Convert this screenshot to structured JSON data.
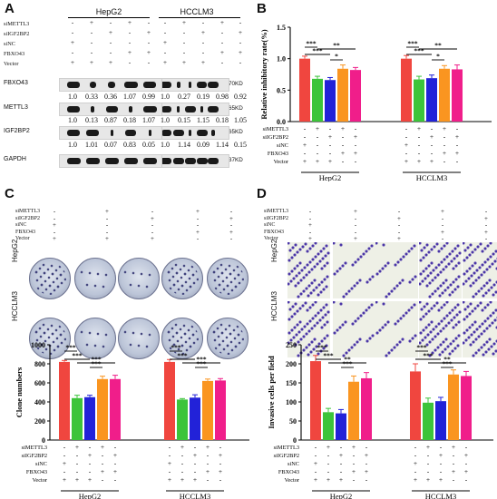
{
  "panels": {
    "A": "A",
    "B": "B",
    "C": "C",
    "D": "D"
  },
  "conditions": {
    "siMETTL3": "siMETTL3",
    "siIGF2BP2": "siIGF2BP2",
    "siNC": "siNC",
    "FBXO43": "FBXO43",
    "Vector": "Vector"
  },
  "cells": [
    "HepG2",
    "HCCLM3"
  ],
  "westerns": {
    "FBXO43": {
      "label": "FBXO43",
      "kd": "70KD",
      "hepg2": [
        "1.0",
        "0.33",
        "0.36",
        "1.07",
        "0.99"
      ],
      "hcclm3": [
        "1.0",
        "0.27",
        "0.19",
        "0.98",
        "0.92"
      ]
    },
    "METTL3": {
      "label": "METTL3",
      "kd": "65KD",
      "hepg2": [
        "1.0",
        "0.13",
        "0.87",
        "0.18",
        "1.07"
      ],
      "hcclm3": [
        "1.0",
        "0.15",
        "1.15",
        "0.18",
        "1.05"
      ]
    },
    "IGF2BP2": {
      "label": "IGF2BP2",
      "kd": "65KD",
      "hepg2": [
        "1.0",
        "1.01",
        "0.07",
        "0.83",
        "0.05"
      ],
      "hcclm3": [
        "1.0",
        "1.14",
        "0.09",
        "1.14",
        "0.15"
      ]
    },
    "GAPDH": {
      "label": "GAPDH",
      "kd": "37KD"
    }
  },
  "matrix_rows": [
    {
      "name": "siMETTL3",
      "row": [
        "-",
        "+",
        "-",
        "+",
        "-"
      ]
    },
    {
      "name": "siIGF2BP2",
      "row": [
        "-",
        "-",
        "+",
        "-",
        "+"
      ]
    },
    {
      "name": "siNC",
      "row": [
        "+",
        "-",
        "-",
        "-",
        "-"
      ]
    },
    {
      "name": "FBXO43",
      "row": [
        "-",
        "-",
        "-",
        "+",
        "+"
      ]
    },
    {
      "name": "Vector",
      "row": [
        "+",
        "+",
        "+",
        "-",
        "-"
      ]
    }
  ],
  "colors": [
    "#f0463f",
    "#3cc43a",
    "#2222d8",
    "#fa9520",
    "#f01e8a"
  ],
  "sig": {
    "s3": "***",
    "s2": "**",
    "s1": "*"
  },
  "chart_data": [
    {
      "type": "bar",
      "panel": "B",
      "ylabel": "Relative inhibitory rate(%)",
      "ylim": [
        0.0,
        1.5
      ],
      "yticks": [
        "0.0",
        "0.5",
        "1.0",
        "1.5"
      ],
      "groups": [
        "HepG2",
        "HCCLM3"
      ],
      "series": [
        {
          "values": [
            1.0,
            0.68,
            0.66,
            0.84,
            0.82
          ]
        },
        {
          "values": [
            1.0,
            0.67,
            0.69,
            0.84,
            0.83
          ]
        }
      ],
      "errors": [
        [
          0.04,
          0.04,
          0.04,
          0.06,
          0.04
        ],
        [
          0.05,
          0.05,
          0.05,
          0.05,
          0.07
        ]
      ]
    },
    {
      "type": "bar",
      "panel": "C",
      "ylabel": "Clone numbers",
      "ylim": [
        0,
        1000
      ],
      "yticks": [
        "0",
        "200",
        "400",
        "600",
        "800",
        "1000"
      ],
      "groups": [
        "HepG2",
        "HCCLM3"
      ],
      "series": [
        {
          "values": [
            820,
            440,
            450,
            640,
            640
          ]
        },
        {
          "values": [
            820,
            425,
            445,
            620,
            625
          ]
        }
      ],
      "errors": [
        [
          15,
          30,
          20,
          30,
          40
        ],
        [
          25,
          10,
          30,
          20,
          20
        ]
      ]
    },
    {
      "type": "bar",
      "panel": "D",
      "ylabel": "Invasive cells per field",
      "ylim": [
        0,
        250
      ],
      "yticks": [
        "0",
        "50",
        "100",
        "150",
        "200",
        "250"
      ],
      "groups": [
        "HepG2",
        "HCCLM3"
      ],
      "series": [
        {
          "values": [
            207,
            73,
            70,
            153,
            162
          ]
        },
        {
          "values": [
            180,
            98,
            102,
            172,
            168
          ]
        }
      ],
      "errors": [
        [
          15,
          10,
          10,
          15,
          15
        ],
        [
          20,
          12,
          10,
          12,
          12
        ]
      ]
    }
  ]
}
